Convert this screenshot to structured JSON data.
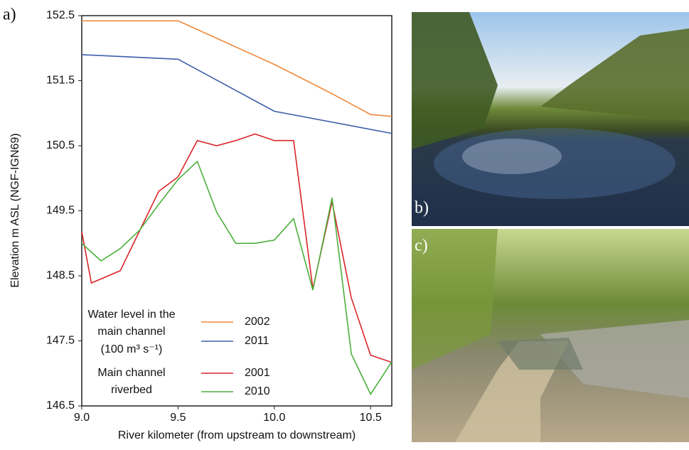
{
  "chart_data": {
    "type": "line",
    "panel_labels": [
      "a)",
      "b)",
      "c)"
    ],
    "xlabel": "River kilometer (from upstream to downstream)",
    "ylabel": "Elevation m ASL (NGF-IGN69)",
    "xlim": [
      9.0,
      10.61
    ],
    "ylim": [
      146.5,
      152.5
    ],
    "xticks": [
      {
        "value": 9.0,
        "label": "9.0"
      },
      9.5,
      {
        "value": 10.0,
        "label": "10.0"
      },
      10.5
    ],
    "yticks": [
      146.5,
      147.5,
      148.5,
      149.5,
      150.5,
      151.5,
      152.5
    ],
    "legend_groups": [
      [
        "Water level in the",
        "main channel",
        "(100 m³ s⁻¹)"
      ],
      [
        "Main channel",
        "riverbed"
      ]
    ],
    "series": [
      {
        "name": "2002",
        "color": "#f0883a",
        "x": [
          9.0,
          9.5,
          10.0,
          10.3,
          10.5,
          10.61
        ],
        "values": [
          152.42,
          152.42,
          151.75,
          151.3,
          150.98,
          150.95
        ]
      },
      {
        "name": "2011",
        "color": "#3c5ea8",
        "x": [
          9.0,
          9.5,
          10.0,
          10.61
        ],
        "values": [
          151.9,
          151.83,
          151.03,
          150.69
        ]
      },
      {
        "name": "2001",
        "color": "#d9252a",
        "x": [
          9.0,
          9.05,
          9.2,
          9.4,
          9.5,
          9.6,
          9.7,
          9.8,
          9.9,
          10.0,
          10.1,
          10.2,
          10.3,
          10.4,
          10.5,
          10.61
        ],
        "values": [
          149.18,
          148.39,
          148.58,
          149.8,
          150.02,
          150.58,
          150.5,
          150.58,
          150.68,
          150.58,
          150.58,
          148.3,
          149.64,
          148.16,
          147.28,
          147.17
        ]
      },
      {
        "name": "2010",
        "color": "#4caf3c",
        "x": [
          9.0,
          9.1,
          9.2,
          9.3,
          9.4,
          9.5,
          9.6,
          9.7,
          9.8,
          9.9,
          10.0,
          10.1,
          10.2,
          10.3,
          10.4,
          10.5,
          10.61
        ],
        "values": [
          149.0,
          148.73,
          148.92,
          149.2,
          149.6,
          149.98,
          150.26,
          149.48,
          149.0,
          149.0,
          149.05,
          149.38,
          148.28,
          149.7,
          147.3,
          146.68,
          147.18
        ]
      }
    ]
  }
}
